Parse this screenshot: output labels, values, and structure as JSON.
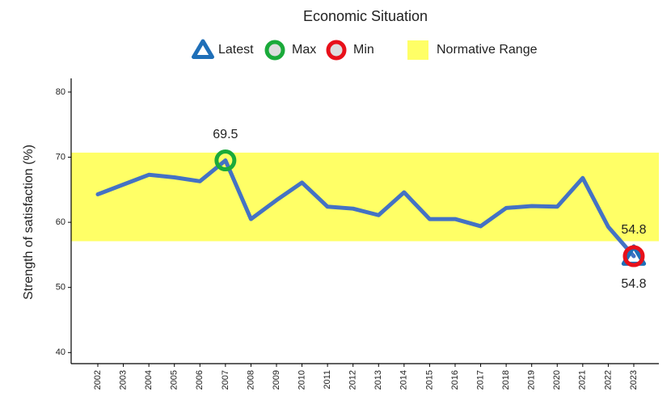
{
  "chart_data": {
    "type": "line",
    "title": "Economic Situation",
    "y_label": "Strength of satisfaction (%)",
    "categories": [
      "2002",
      "2003",
      "2004",
      "2005",
      "2006",
      "2007",
      "2008",
      "2009",
      "2010",
      "2011",
      "2012",
      "2013",
      "2014",
      "2015",
      "2016",
      "2017",
      "2018",
      "2019",
      "2020",
      "2021",
      "2022",
      "2023"
    ],
    "series": [
      {
        "name": "Economic Situation",
        "color": "#4472c4",
        "values": [
          64.3,
          65.8,
          67.3,
          66.9,
          66.3,
          69.5,
          60.5,
          63.4,
          66.1,
          62.4,
          62.1,
          61.1,
          64.6,
          60.5,
          60.5,
          59.4,
          62.2,
          62.5,
          62.4,
          66.8,
          59.3,
          54.8
        ]
      }
    ],
    "highlights": [
      {
        "name": "Latest",
        "shape": "triangle",
        "color": "#1f6fb8",
        "x": "2023",
        "value": 54.8,
        "label_side": "above"
      },
      {
        "name": "Max",
        "shape": "circle",
        "color": "#1aaa3a",
        "x": "2007",
        "value": 69.5,
        "label_side": "above"
      },
      {
        "name": "Min",
        "shape": "circle",
        "color": "#e8101a",
        "x": "2023",
        "value": 54.8,
        "label_side": "below"
      }
    ],
    "normative_range": {
      "name": "Normative Range",
      "color": "#ffff66",
      "values": [
        57.1,
        70.7
      ]
    },
    "ylim": [
      38.3,
      82.1
    ],
    "yticks": [
      40,
      50,
      60,
      70,
      80
    ]
  }
}
